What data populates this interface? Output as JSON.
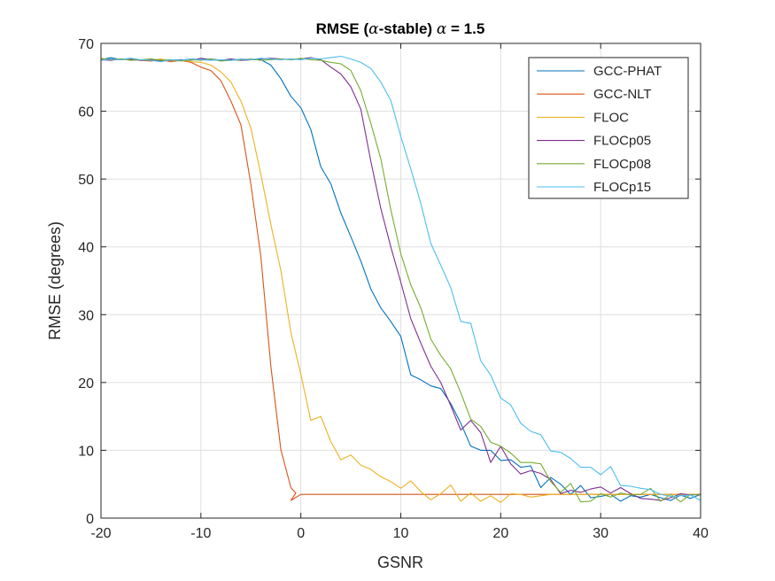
{
  "chart_data": {
    "type": "line",
    "title": {
      "part1": "RMSE (",
      "alpha1": "α",
      "part2": "-stable) ",
      "alpha2": "α",
      "part3": " = 1.5"
    },
    "xlabel": "GSNR",
    "ylabel": "RMSE (degrees)",
    "xlim": [
      -20,
      40
    ],
    "ylim": [
      0,
      70
    ],
    "xticks": [
      -20,
      -10,
      0,
      10,
      20,
      30,
      40
    ],
    "yticks": [
      0,
      10,
      20,
      30,
      40,
      50,
      60,
      70
    ],
    "grid": true,
    "legend_position": "top-right",
    "series": [
      {
        "name": "GCC-PHAT",
        "color": "#0072BD",
        "points": [
          [
            -20,
            67.6
          ],
          [
            -19,
            67.9
          ],
          [
            -18,
            67.6
          ],
          [
            -17,
            67.8
          ],
          [
            -16,
            67.5
          ],
          [
            -15,
            67.7
          ],
          [
            -14,
            67.4
          ],
          [
            -13,
            67.6
          ],
          [
            -12,
            67.5
          ],
          [
            -11,
            67.7
          ],
          [
            -10,
            67.6
          ],
          [
            -9,
            67.7
          ],
          [
            -8,
            67.5
          ],
          [
            -7,
            67.6
          ],
          [
            -6,
            67.5
          ],
          [
            -5,
            67.6
          ],
          [
            -4,
            67.6
          ],
          [
            -3,
            66.8
          ],
          [
            -2,
            64.8
          ],
          [
            -1,
            62.2
          ],
          [
            0,
            60.5
          ],
          [
            1,
            57.3
          ],
          [
            2,
            51.8
          ],
          [
            3,
            49.3
          ],
          [
            4,
            45
          ],
          [
            5,
            41.5
          ],
          [
            6,
            37.9
          ],
          [
            7,
            33.8
          ],
          [
            8,
            31
          ],
          [
            9,
            29
          ],
          [
            10,
            26.8
          ],
          [
            11,
            21.1
          ],
          [
            12,
            20.4
          ],
          [
            13,
            19.5
          ],
          [
            14,
            19.1
          ],
          [
            15,
            16.9
          ],
          [
            16,
            14
          ],
          [
            17,
            10.6
          ],
          [
            18,
            10
          ],
          [
            19,
            10
          ],
          [
            20,
            8.5
          ],
          [
            21,
            8.6
          ],
          [
            22,
            7.5
          ],
          [
            23,
            7.7
          ],
          [
            24,
            4.5
          ],
          [
            25,
            6
          ],
          [
            26,
            5
          ],
          [
            27,
            3.5
          ],
          [
            28,
            4.8
          ],
          [
            29,
            3
          ],
          [
            30,
            3.2
          ],
          [
            31,
            3.5
          ],
          [
            32,
            2.5
          ],
          [
            33,
            3.3
          ],
          [
            34,
            3.1
          ],
          [
            35,
            3.5
          ],
          [
            36,
            3
          ],
          [
            37,
            2.6
          ],
          [
            38,
            3.4
          ],
          [
            39,
            2.9
          ],
          [
            40,
            3.5
          ]
        ]
      },
      {
        "name": "GCC-NLT",
        "color": "#D95319",
        "points": [
          [
            -20,
            67.5
          ],
          [
            -19,
            67.7
          ],
          [
            -18,
            67.6
          ],
          [
            -17,
            67.7
          ],
          [
            -16,
            67.5
          ],
          [
            -15,
            67.4
          ],
          [
            -14,
            67.6
          ],
          [
            -13,
            67.3
          ],
          [
            -12,
            67.5
          ],
          [
            -11,
            67.2
          ],
          [
            -10,
            66.5
          ],
          [
            -9,
            66
          ],
          [
            -8,
            64.5
          ],
          [
            -7,
            61.5
          ],
          [
            -6,
            58
          ],
          [
            -5,
            49.2
          ],
          [
            -4,
            38.6
          ],
          [
            -3,
            22.4
          ],
          [
            -2,
            10.1
          ],
          [
            -1,
            4.5
          ],
          [
            -0.5,
            3.7
          ],
          [
            -1,
            2.6
          ],
          [
            0,
            3.5
          ],
          [
            1,
            3.5
          ],
          [
            5,
            3.5
          ],
          [
            10,
            3.5
          ],
          [
            15,
            3.5
          ],
          [
            20,
            3.5
          ],
          [
            25,
            3.5
          ],
          [
            30,
            3.5
          ],
          [
            35,
            3.5
          ],
          [
            40,
            3.5
          ]
        ]
      },
      {
        "name": "FLOC",
        "color": "#EDB120",
        "points": [
          [
            -20,
            67.7
          ],
          [
            -19,
            67.6
          ],
          [
            -18,
            67.7
          ],
          [
            -17,
            67.5
          ],
          [
            -16,
            67.6
          ],
          [
            -15,
            67.5
          ],
          [
            -14,
            67.7
          ],
          [
            -13,
            67.4
          ],
          [
            -12,
            67.6
          ],
          [
            -11,
            67.3
          ],
          [
            -10,
            67.2
          ],
          [
            -9,
            66.8
          ],
          [
            -8,
            65.8
          ],
          [
            -7,
            64.3
          ],
          [
            -6,
            61.5
          ],
          [
            -5,
            57.5
          ],
          [
            -4,
            50.7
          ],
          [
            -3,
            43.3
          ],
          [
            -2,
            36.5
          ],
          [
            -1,
            27.4
          ],
          [
            0,
            21.2
          ],
          [
            1,
            14.4
          ],
          [
            2,
            15
          ],
          [
            3,
            11.3
          ],
          [
            4,
            8.6
          ],
          [
            5,
            9.3
          ],
          [
            6,
            7.8
          ],
          [
            7,
            7.2
          ],
          [
            8,
            6.1
          ],
          [
            9,
            5.4
          ],
          [
            10,
            4.4
          ],
          [
            11,
            5.5
          ],
          [
            12,
            3.9
          ],
          [
            13,
            2.7
          ],
          [
            14,
            3.6
          ],
          [
            15,
            4.9
          ],
          [
            16,
            2.5
          ],
          [
            17,
            3.7
          ],
          [
            18,
            2.5
          ],
          [
            19,
            3.3
          ],
          [
            20,
            2.3
          ],
          [
            21,
            3.6
          ],
          [
            22,
            3.5
          ],
          [
            23,
            3.1
          ],
          [
            25,
            3.5
          ],
          [
            30,
            3.5
          ],
          [
            35,
            3.5
          ],
          [
            40,
            3.5
          ]
        ]
      },
      {
        "name": "FLOCp05",
        "color": "#7E2F8E",
        "points": [
          [
            -20,
            67.6
          ],
          [
            -19,
            67.5
          ],
          [
            -18,
            67.7
          ],
          [
            -17,
            67.6
          ],
          [
            -16,
            67.5
          ],
          [
            -15,
            67.6
          ],
          [
            -14,
            67.4
          ],
          [
            -13,
            67.5
          ],
          [
            -12,
            67.6
          ],
          [
            -11,
            67.5
          ],
          [
            -10,
            67.8
          ],
          [
            -9,
            67.6
          ],
          [
            -8,
            67.5
          ],
          [
            -7,
            67.7
          ],
          [
            -6,
            67.5
          ],
          [
            -5,
            67.6
          ],
          [
            -4,
            67.7
          ],
          [
            -3,
            67.8
          ],
          [
            -2,
            67.7
          ],
          [
            -1,
            67.6
          ],
          [
            0,
            67.7
          ],
          [
            1,
            67.9
          ],
          [
            2,
            67.6
          ],
          [
            3,
            66.5
          ],
          [
            4,
            65.5
          ],
          [
            5,
            63.6
          ],
          [
            6,
            60.3
          ],
          [
            7,
            52.6
          ],
          [
            8,
            45.7
          ],
          [
            9,
            40
          ],
          [
            10,
            34.8
          ],
          [
            11,
            29.4
          ],
          [
            12,
            25.8
          ],
          [
            13,
            22.4
          ],
          [
            14,
            20
          ],
          [
            15,
            16.6
          ],
          [
            16,
            13
          ],
          [
            17,
            14.4
          ],
          [
            18,
            12.6
          ],
          [
            19,
            8.2
          ],
          [
            20,
            10.6
          ],
          [
            21,
            8
          ],
          [
            22,
            6.5
          ],
          [
            23,
            7
          ],
          [
            24,
            6.6
          ],
          [
            25,
            5.7
          ],
          [
            26,
            3.6
          ],
          [
            27,
            4.1
          ],
          [
            28,
            3.8
          ],
          [
            29,
            4.3
          ],
          [
            30,
            4.6
          ],
          [
            31,
            3.7
          ],
          [
            32,
            4.5
          ],
          [
            33,
            3.6
          ],
          [
            34,
            2.9
          ],
          [
            35,
            2.8
          ],
          [
            36,
            2.6
          ],
          [
            37,
            3
          ],
          [
            38,
            3.6
          ],
          [
            39,
            3.4
          ],
          [
            40,
            3.5
          ]
        ]
      },
      {
        "name": "FLOCp08",
        "color": "#77AC30",
        "points": [
          [
            -20,
            67.8
          ],
          [
            -19,
            67.6
          ],
          [
            -18,
            67.7
          ],
          [
            -17,
            67.5
          ],
          [
            -16,
            67.6
          ],
          [
            -15,
            67.7
          ],
          [
            -14,
            67.5
          ],
          [
            -13,
            67.6
          ],
          [
            -12,
            67.4
          ],
          [
            -11,
            67.6
          ],
          [
            -10,
            67.5
          ],
          [
            -9,
            67.7
          ],
          [
            -8,
            67.4
          ],
          [
            -7,
            67.5
          ],
          [
            -6,
            67.6
          ],
          [
            -5,
            67.7
          ],
          [
            -4,
            67.5
          ],
          [
            -3,
            67.6
          ],
          [
            -2,
            67.7
          ],
          [
            -1,
            67.6
          ],
          [
            0,
            67.8
          ],
          [
            1,
            67.6
          ],
          [
            2,
            67.5
          ],
          [
            3,
            67.2
          ],
          [
            4,
            67
          ],
          [
            5,
            66
          ],
          [
            6,
            63
          ],
          [
            7,
            58.2
          ],
          [
            8,
            53
          ],
          [
            9,
            45.5
          ],
          [
            10,
            39
          ],
          [
            11,
            34.4
          ],
          [
            12,
            31
          ],
          [
            13,
            26.4
          ],
          [
            14,
            24
          ],
          [
            15,
            22
          ],
          [
            16,
            18.5
          ],
          [
            17,
            14.6
          ],
          [
            18,
            13.5
          ],
          [
            19,
            11.2
          ],
          [
            20,
            10.6
          ],
          [
            21,
            9.6
          ],
          [
            22,
            8.2
          ],
          [
            23,
            8.2
          ],
          [
            24,
            8
          ],
          [
            25,
            5.4
          ],
          [
            26,
            3.8
          ],
          [
            27,
            5.1
          ],
          [
            28,
            2.4
          ],
          [
            29,
            2.5
          ],
          [
            30,
            3.6
          ],
          [
            31,
            3.1
          ],
          [
            32,
            3.7
          ],
          [
            33,
            3.4
          ],
          [
            34,
            3.5
          ],
          [
            35,
            4.4
          ],
          [
            36,
            2.5
          ],
          [
            37,
            3.5
          ],
          [
            38,
            2.4
          ],
          [
            39,
            3.5
          ],
          [
            40,
            3.4
          ]
        ]
      },
      {
        "name": "FLOCp15",
        "color": "#4DBEEE",
        "points": [
          [
            -20,
            67.5
          ],
          [
            -19,
            67.7
          ],
          [
            -18,
            67.6
          ],
          [
            -17,
            67.8
          ],
          [
            -16,
            67.6
          ],
          [
            -15,
            67.5
          ],
          [
            -14,
            67.3
          ],
          [
            -13,
            67.6
          ],
          [
            -12,
            67.5
          ],
          [
            -11,
            67.7
          ],
          [
            -10,
            67.6
          ],
          [
            -9,
            67.5
          ],
          [
            -8,
            67.6
          ],
          [
            -7,
            67.5
          ],
          [
            -6,
            67.7
          ],
          [
            -5,
            67.6
          ],
          [
            -4,
            67.8
          ],
          [
            -3,
            67.7
          ],
          [
            -2,
            67.6
          ],
          [
            -1,
            67.7
          ],
          [
            0,
            67.6
          ],
          [
            1,
            67.8
          ],
          [
            2,
            67.7
          ],
          [
            3,
            67.9
          ],
          [
            4,
            68.1
          ],
          [
            5,
            67.7
          ],
          [
            6,
            67.2
          ],
          [
            7,
            66.3
          ],
          [
            8,
            64.3
          ],
          [
            9,
            61.6
          ],
          [
            10,
            56.3
          ],
          [
            11,
            51.5
          ],
          [
            12,
            46.4
          ],
          [
            13,
            40.5
          ],
          [
            14,
            37.3
          ],
          [
            15,
            34
          ],
          [
            16,
            29
          ],
          [
            17,
            28.7
          ],
          [
            18,
            23.2
          ],
          [
            19,
            21.1
          ],
          [
            20,
            17.7
          ],
          [
            21,
            16.7
          ],
          [
            22,
            14
          ],
          [
            23,
            12.8
          ],
          [
            24,
            12.3
          ],
          [
            25,
            9.9
          ],
          [
            26,
            9.7
          ],
          [
            27,
            8.8
          ],
          [
            28,
            7.5
          ],
          [
            29,
            7.5
          ],
          [
            30,
            6.4
          ],
          [
            31,
            7.6
          ],
          [
            32,
            4.8
          ],
          [
            33,
            4.7
          ],
          [
            34,
            4.4
          ],
          [
            35,
            4.2
          ],
          [
            36,
            3.5
          ],
          [
            37,
            3.2
          ],
          [
            38,
            3.3
          ],
          [
            39,
            3.4
          ],
          [
            40,
            2.6
          ]
        ]
      }
    ]
  }
}
